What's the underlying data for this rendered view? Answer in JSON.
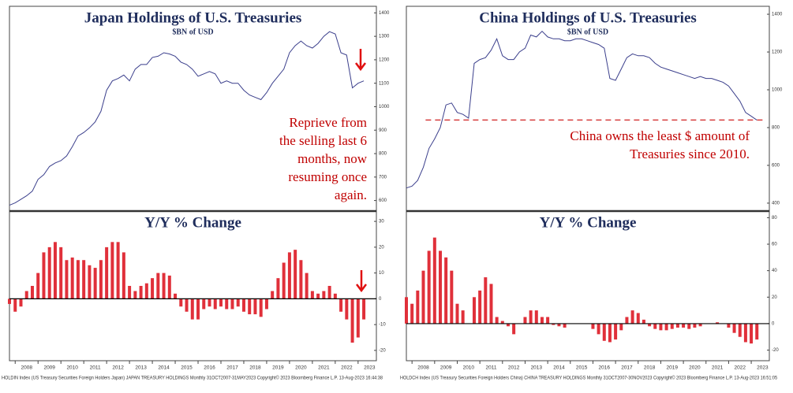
{
  "chart_data": [
    {
      "x": [
        2007.75,
        2008,
        2008.25,
        2008.5,
        2008.75,
        2009,
        2009.25,
        2009.5,
        2009.75,
        2010,
        2010.25,
        2010.5,
        2010.75,
        2011,
        2011.25,
        2011.5,
        2011.75,
        2012,
        2012.25,
        2012.5,
        2012.75,
        2013,
        2013.25,
        2013.5,
        2013.75,
        2014,
        2014.25,
        2014.5,
        2014.75,
        2015,
        2015.25,
        2015.5,
        2015.75,
        2016,
        2016.25,
        2016.5,
        2016.75,
        2017,
        2017.25,
        2017.5,
        2017.75,
        2018,
        2018.25,
        2018.5,
        2018.75,
        2019,
        2019.25,
        2019.5,
        2019.75,
        2020,
        2020.25,
        2020.5,
        2020.75,
        2021,
        2021.25,
        2021.5,
        2021.75,
        2022,
        2022.25,
        2022.5,
        2022.75,
        2023,
        2023.25
      ],
      "xlim": [
        2007.75,
        2023.8
      ],
      "xticks": [
        2008,
        2009,
        2010,
        2011,
        2012,
        2013,
        2014,
        2015,
        2016,
        2017,
        2018,
        2019,
        2020,
        2021,
        2022,
        2023
      ],
      "footer": "HOLDIN Index (US Treasury Securities Foreign Holders Japan) JAPAN TREASURY HOLDINGS  Monthly 31OCT2007-31MAY2023  Copyright© 2023 Bloomberg Finance L.P.     13-Aug-2023 16:44:38",
      "panels": [
        {
          "type": "line",
          "title": "Japan Holdings of U.S. Treasuries",
          "subtitle": "$BN of USD",
          "color": "#3b3f8c",
          "values": [
            580,
            590,
            605,
            620,
            640,
            690,
            710,
            745,
            760,
            770,
            790,
            830,
            875,
            890,
            910,
            935,
            980,
            1070,
            1110,
            1120,
            1135,
            1110,
            1160,
            1180,
            1180,
            1210,
            1215,
            1230,
            1225,
            1215,
            1190,
            1180,
            1160,
            1130,
            1140,
            1150,
            1140,
            1100,
            1110,
            1100,
            1100,
            1070,
            1050,
            1040,
            1030,
            1060,
            1100,
            1130,
            1160,
            1230,
            1260,
            1280,
            1260,
            1250,
            1270,
            1300,
            1320,
            1310,
            1230,
            1220,
            1080,
            1100,
            1110
          ],
          "ylim": [
            555,
            1428
          ],
          "yticks": [
            600,
            700,
            800,
            900,
            1000,
            1100,
            1200,
            1300,
            1400
          ],
          "annotation": [
            "Reprieve from",
            "the selling last 6",
            "months, now",
            "resuming once",
            "again."
          ]
        },
        {
          "type": "bar",
          "title": "Y/Y % Change",
          "color": "#e0303a",
          "values": [
            -2,
            -5,
            -3,
            3,
            5,
            10,
            18,
            20,
            22,
            20,
            15,
            16,
            15,
            15,
            13,
            12,
            15,
            20,
            22,
            22,
            18,
            5,
            3,
            5,
            6,
            8,
            10,
            10,
            9,
            2,
            -3,
            -5,
            -8,
            -8,
            -4,
            -3,
            -4,
            -3,
            -4,
            -4,
            -3,
            -5,
            -6,
            -6,
            -7,
            -4,
            3,
            8,
            14,
            18,
            19,
            15,
            10,
            3,
            2,
            3,
            5,
            2,
            -5,
            -8,
            -17,
            -15,
            -8
          ],
          "ylim": [
            -24,
            34
          ],
          "yticks": [
            -20,
            -10,
            0,
            10,
            20,
            30
          ]
        }
      ]
    },
    {
      "x": [
        2007.75,
        2008,
        2008.25,
        2008.5,
        2008.75,
        2009,
        2009.25,
        2009.5,
        2009.75,
        2010,
        2010.25,
        2010.5,
        2010.75,
        2011,
        2011.25,
        2011.5,
        2011.75,
        2012,
        2012.25,
        2012.5,
        2012.75,
        2013,
        2013.25,
        2013.5,
        2013.75,
        2014,
        2014.25,
        2014.5,
        2014.75,
        2015,
        2015.25,
        2015.5,
        2015.75,
        2016,
        2016.25,
        2016.5,
        2016.75,
        2017,
        2017.25,
        2017.5,
        2017.75,
        2018,
        2018.25,
        2018.5,
        2018.75,
        2019,
        2019.25,
        2019.5,
        2019.75,
        2020,
        2020.25,
        2020.5,
        2020.75,
        2021,
        2021.25,
        2021.5,
        2021.75,
        2022,
        2022.25,
        2022.5,
        2022.75,
        2023,
        2023.25
      ],
      "xlim": [
        2007.75,
        2023.8
      ],
      "xticks": [
        2008,
        2009,
        2010,
        2011,
        2012,
        2013,
        2014,
        2015,
        2016,
        2017,
        2018,
        2019,
        2020,
        2021,
        2022,
        2023
      ],
      "footer": "HOLDCH Index (US Treasury Securities Foreign Holders China) CHINA TREASURY HOLDINGS  Monthly 31OCT2007-30NOV2023  Copyright© 2023 Bloomberg Finance L.P.     13-Aug-2023 16:51:05",
      "panels": [
        {
          "type": "line",
          "title": "China Holdings of U.S. Treasuries",
          "subtitle": "$BN of USD",
          "color": "#3b3f8c",
          "values": [
            480,
            490,
            520,
            590,
            690,
            740,
            800,
            920,
            930,
            880,
            870,
            850,
            1140,
            1160,
            1170,
            1210,
            1270,
            1180,
            1160,
            1160,
            1200,
            1220,
            1290,
            1280,
            1310,
            1280,
            1270,
            1270,
            1260,
            1260,
            1270,
            1270,
            1260,
            1250,
            1240,
            1220,
            1060,
            1050,
            1110,
            1170,
            1190,
            1180,
            1180,
            1170,
            1140,
            1120,
            1110,
            1100,
            1090,
            1080,
            1070,
            1060,
            1070,
            1060,
            1060,
            1050,
            1040,
            1020,
            980,
            940,
            880,
            860,
            840
          ],
          "ylim": [
            358,
            1442
          ],
          "yticks": [
            400,
            600,
            800,
            1000,
            1200,
            1400
          ],
          "reference_line": 840,
          "annotation": [
            "China owns the least $ amount of",
            "Treasuries since 2010."
          ]
        },
        {
          "type": "bar",
          "title": "Y/Y % Change",
          "color": "#e0303a",
          "values": [
            20,
            15,
            25,
            40,
            55,
            65,
            55,
            50,
            40,
            15,
            10,
            0,
            20,
            25,
            35,
            30,
            5,
            2,
            -2,
            -8,
            0,
            5,
            10,
            10,
            5,
            5,
            -1,
            -2,
            -3,
            0,
            0,
            0,
            0,
            -4,
            -8,
            -13,
            -14,
            -12,
            -5,
            5,
            10,
            8,
            3,
            -2,
            -4,
            -5,
            -5,
            -4,
            -3,
            -3,
            -4,
            -3,
            -2,
            0,
            0,
            1,
            0,
            -3,
            -7,
            -10,
            -14,
            -15,
            -12
          ],
          "ylim": [
            -28,
            85
          ],
          "yticks": [
            -20,
            0,
            20,
            40,
            60,
            80
          ]
        }
      ]
    }
  ]
}
